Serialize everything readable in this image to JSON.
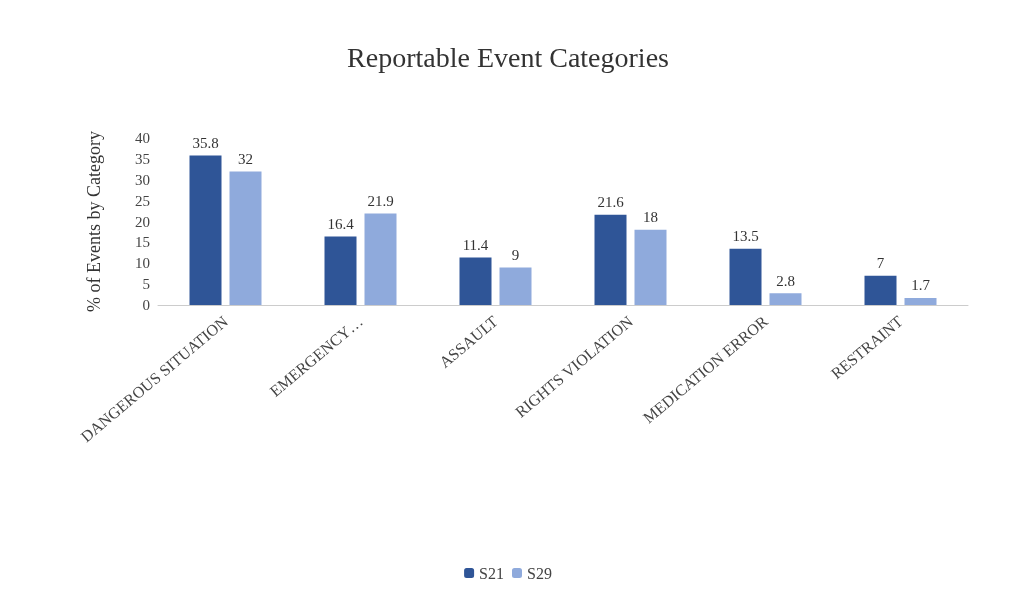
{
  "chart_data": {
    "type": "bar",
    "title": "Reportable Event Categories",
    "ylabel": "% of Events by Category",
    "categories": [
      "DANGEROUS SITUATION",
      "EMERGENCY…",
      "ASSAULT",
      "RIGHTS VIOLATION",
      "MEDICATION ERROR",
      "RESTRAINT"
    ],
    "series": [
      {
        "name": "S21",
        "color": "#2f5597",
        "values": [
          35.8,
          16.4,
          11.4,
          21.6,
          13.5,
          7
        ]
      },
      {
        "name": "S29",
        "color": "#8faadc",
        "values": [
          32,
          21.9,
          9,
          18,
          2.8,
          1.7
        ]
      }
    ],
    "ylim": [
      0,
      40
    ],
    "yticks": [
      0,
      5,
      10,
      15,
      20,
      25,
      30,
      35,
      40
    ],
    "grid": false,
    "legend": "bottom",
    "data_labels": true
  }
}
